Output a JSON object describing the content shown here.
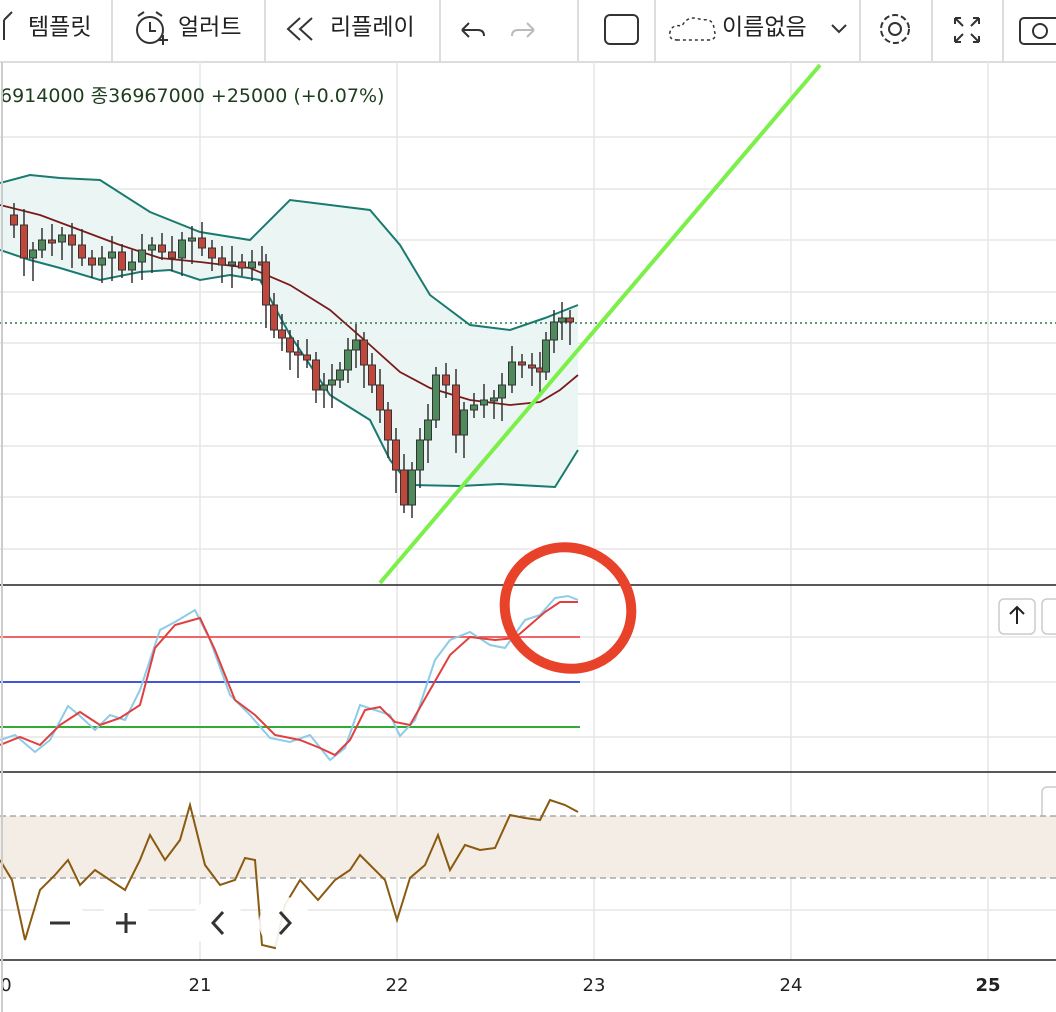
{
  "toolbar": {
    "template": "템플릿",
    "alert": "얼러트",
    "replay": "리플레이",
    "layout_name": "이름없음"
  },
  "info": {
    "open": "6914000",
    "close_label": "종",
    "close": "36967000",
    "change": "+25000",
    "change_pct": "(+0.07%)"
  },
  "x_axis": {
    "labels": [
      "0",
      "21",
      "22",
      "23",
      "24",
      "25"
    ]
  }
}
